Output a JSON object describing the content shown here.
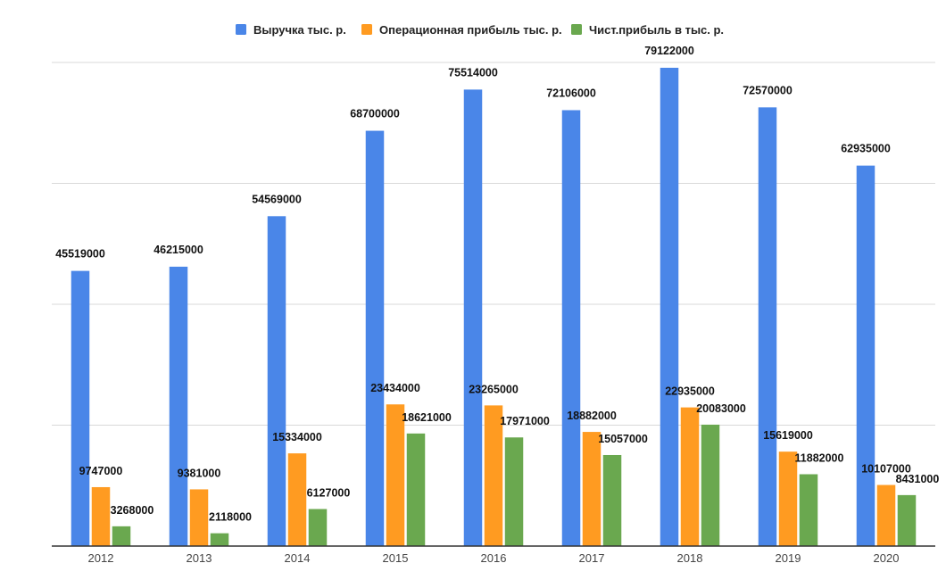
{
  "chart_data": {
    "type": "bar",
    "title": "",
    "xlabel": "",
    "ylabel": "",
    "ylim": [
      0,
      80000000
    ],
    "grid": true,
    "legend_position": "top-center",
    "categories": [
      "2012",
      "2013",
      "2014",
      "2015",
      "2016",
      "2017",
      "2018",
      "2019",
      "2020"
    ],
    "series": [
      {
        "name": "Выручка тыс. р.",
        "color": "#4a86e8",
        "values": [
          45519000,
          46215000,
          54569000,
          68700000,
          75514000,
          72106000,
          79122000,
          72570000,
          62935000
        ],
        "labels": [
          "45519000",
          "46215000",
          "54569000",
          "68700000",
          "75514000",
          "72106000",
          "79122000",
          "72570000",
          "62935000"
        ]
      },
      {
        "name": "Операционная прибыль тыс. р.",
        "color": "#ff9b21",
        "values": [
          9747000,
          9381000,
          15334000,
          23434000,
          23265000,
          18882000,
          22935000,
          15619000,
          10107000
        ],
        "labels": [
          "9747000",
          "9381000",
          "15334000",
          "23434000",
          "23265000",
          "18882000",
          "22935000",
          "15619000",
          "10107000"
        ]
      },
      {
        "name": "Чист.прибыль в тыс. р.",
        "color": "#6aa84f",
        "values": [
          3268000,
          2118000,
          6127000,
          18621000,
          17971000,
          15057000,
          20083000,
          11882000,
          8431000
        ],
        "labels": [
          "3268000",
          "2118000",
          "6127000",
          "18621000",
          "17971000",
          "15057000",
          "20083000",
          "11882000",
          "8431000"
        ]
      }
    ]
  }
}
